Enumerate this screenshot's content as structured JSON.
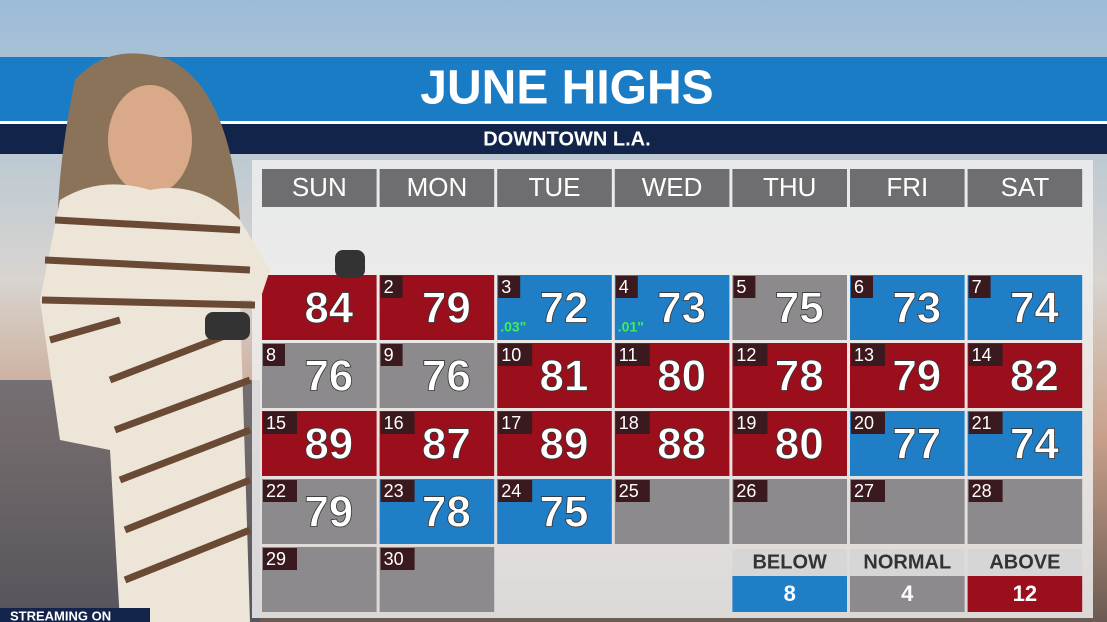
{
  "header": {
    "title": "JUNE HIGHS",
    "subtitle": "DOWNTOWN L.A."
  },
  "weekdays": [
    "SUN",
    "MON",
    "TUE",
    "WED",
    "THU",
    "FRI",
    "SAT"
  ],
  "days": [
    {
      "high": 84,
      "color": "#9b0f1c"
    },
    {
      "date": "2",
      "high": 79,
      "color": "#9b0f1c"
    },
    {
      "date": "3",
      "high": 72,
      "precip": ".03\"",
      "color": "#1f7ec6"
    },
    {
      "date": "4",
      "high": 73,
      "precip": ".01\"",
      "color": "#1f7ec6"
    },
    {
      "date": "5",
      "high": 75,
      "color": "#8c8a8c"
    },
    {
      "date": "6",
      "high": 73,
      "color": "#1f7ec6"
    },
    {
      "date": "7",
      "high": 74,
      "color": "#1f7ec6"
    },
    {
      "date": "8",
      "high": 76,
      "color": "#8c8a8c"
    },
    {
      "date": "9",
      "high": 76,
      "color": "#8c8a8c"
    },
    {
      "date": "10",
      "high": 81,
      "color": "#9b0f1c"
    },
    {
      "date": "11",
      "high": 80,
      "color": "#9b0f1c"
    },
    {
      "date": "12",
      "high": 78,
      "color": "#9b0f1c"
    },
    {
      "date": "13",
      "high": 79,
      "color": "#9b0f1c"
    },
    {
      "date": "14",
      "high": 82,
      "color": "#9b0f1c"
    },
    {
      "date": "15",
      "high": 89,
      "color": "#9b0f1c"
    },
    {
      "date": "16",
      "high": 87,
      "color": "#9b0f1c"
    },
    {
      "date": "17",
      "high": 89,
      "color": "#9b0f1c"
    },
    {
      "date": "18",
      "high": 88,
      "color": "#9b0f1c"
    },
    {
      "date": "19",
      "high": 80,
      "color": "#9b0f1c"
    },
    {
      "date": "20",
      "high": 77,
      "color": "#1f7ec6"
    },
    {
      "date": "21",
      "high": 74,
      "color": "#1f7ec6"
    },
    {
      "date": "22",
      "high": 79,
      "color": "#8c8a8c"
    },
    {
      "date": "23",
      "high": 78,
      "color": "#1f7ec6"
    },
    {
      "date": "24",
      "high": 75,
      "color": "#1f7ec6"
    },
    {
      "date": "25",
      "color": "#8c8a8c"
    },
    {
      "date": "26",
      "color": "#8c8a8c"
    },
    {
      "date": "27",
      "color": "#8c8a8c"
    },
    {
      "date": "28",
      "color": "#8c8a8c"
    },
    {
      "date": "29",
      "color": "#8c8a8c"
    },
    {
      "date": "30",
      "color": "#8c8a8c"
    }
  ],
  "legend": [
    {
      "label": "BELOW",
      "count": 8,
      "color": "#1f7ec6"
    },
    {
      "label": "NORMAL",
      "count": 4,
      "color": "#8c8a8c"
    },
    {
      "label": "ABOVE",
      "count": 12,
      "color": "#9b0f1c"
    }
  ],
  "footer": {
    "text": "STREAMING ON"
  }
}
